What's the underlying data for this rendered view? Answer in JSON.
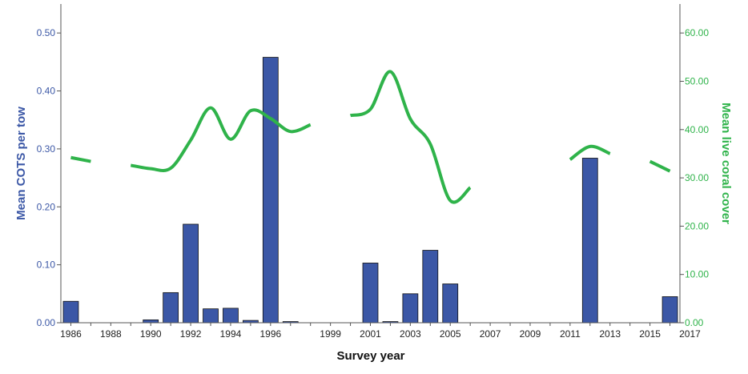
{
  "chart_data": {
    "type": "bar",
    "xlabel": "Survey year",
    "ylabel_left": "Mean COTS per tow",
    "ylabel_right": "Mean live coral cover",
    "ylim_left": [
      0,
      0.55
    ],
    "ylim_right": [
      0,
      66
    ],
    "yticks_left": [
      "0.00",
      "0.10",
      "0.20",
      "0.30",
      "0.40",
      "0.50"
    ],
    "yticks_right": [
      "0.00",
      "10.00",
      "20.00",
      "30.00",
      "40.00",
      "50.00",
      "60.00"
    ],
    "x_tick_labels": [
      "1986",
      "1988",
      "1990",
      "1992",
      "1994",
      "1996",
      "1999",
      "2001",
      "2003",
      "2005",
      "2007",
      "2009",
      "2011",
      "2013",
      "2015",
      "2017"
    ],
    "grid": false,
    "colors": {
      "bars": "#3b57a6",
      "line": "#2fb34a",
      "axis": "#555555"
    },
    "series": [
      {
        "kind": "bar",
        "axis": "left",
        "values": [
          0.037,
          null,
          null,
          null,
          0.005,
          0.052,
          0.17,
          0.024,
          0.025,
          0.004,
          0.458,
          0.002,
          null,
          null,
          null,
          0.103,
          0.002,
          0.05,
          0.125,
          0.067,
          null,
          null,
          null,
          null,
          null,
          null,
          0.284,
          null,
          null,
          null,
          0.045
        ]
      },
      {
        "kind": "line",
        "axis": "right",
        "values": [
          34.2,
          33.4,
          null,
          32.6,
          31.9,
          32.0,
          37.8,
          44.5,
          38.0,
          43.9,
          42.3,
          39.6,
          41.0,
          null,
          42.9,
          44.2,
          52.0,
          42.2,
          37.0,
          25.3,
          28.0,
          null,
          null,
          null,
          null,
          33.8,
          36.5,
          35.0,
          null,
          33.4,
          31.4
        ]
      }
    ]
  }
}
